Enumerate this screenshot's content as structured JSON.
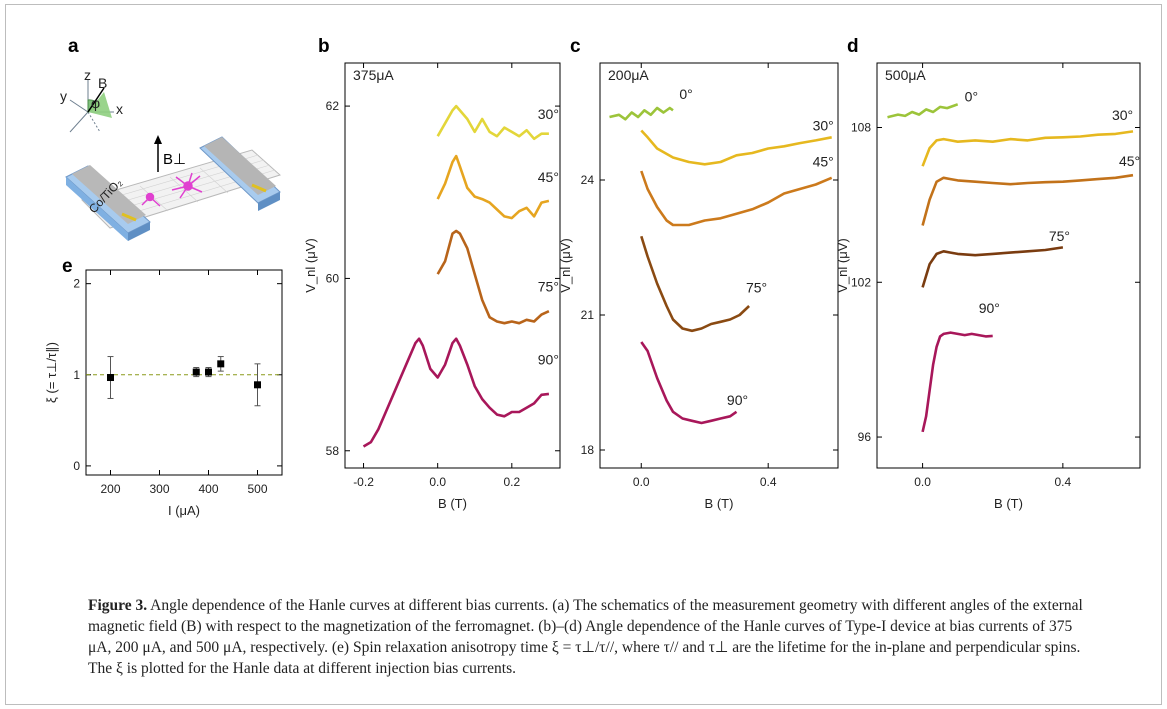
{
  "figure": {
    "panels": {
      "a": {
        "label": "a",
        "axis_x": "x",
        "axis_y": "y",
        "axis_z": "z",
        "field": "B",
        "angle": "φ",
        "bperp": "B⊥",
        "electrode": "Co/TiO₂"
      },
      "b": {
        "label": "b"
      },
      "c": {
        "label": "c"
      },
      "d": {
        "label": "d"
      },
      "e": {
        "label": "e"
      }
    }
  },
  "chart_data": [
    {
      "panel": "b",
      "type": "line",
      "current_label": "375μA",
      "xlabel": "B (T)",
      "ylabel": "V_nl (μV)",
      "xlim": [
        -0.25,
        0.33
      ],
      "ylim": [
        57.8,
        62.5
      ],
      "xticks": [
        -0.2,
        0.0,
        0.2
      ],
      "xtick_labels": [
        "-0.2",
        "0.0",
        "0.2"
      ],
      "yticks": [
        58,
        60,
        62
      ],
      "ytick_labels": [
        "58",
        "60",
        "62"
      ],
      "series": [
        {
          "name": "30°",
          "color": "#e3d63a",
          "label_at": [
            0.27,
            61.85
          ],
          "x": [
            0.0,
            0.02,
            0.04,
            0.05,
            0.06,
            0.08,
            0.1,
            0.12,
            0.14,
            0.16,
            0.18,
            0.2,
            0.22,
            0.24,
            0.26,
            0.28,
            0.3
          ],
          "y": [
            61.65,
            61.8,
            61.95,
            62.0,
            61.95,
            61.85,
            61.7,
            61.85,
            61.7,
            61.65,
            61.75,
            61.7,
            61.65,
            61.72,
            61.62,
            61.68,
            61.68
          ]
        },
        {
          "name": "45°",
          "color": "#e6a520",
          "label_at": [
            0.27,
            61.12
          ],
          "x": [
            0.0,
            0.02,
            0.04,
            0.05,
            0.06,
            0.08,
            0.1,
            0.12,
            0.14,
            0.16,
            0.18,
            0.2,
            0.22,
            0.24,
            0.26,
            0.28,
            0.3
          ],
          "y": [
            60.92,
            61.1,
            61.35,
            61.42,
            61.3,
            61.05,
            60.95,
            60.92,
            60.88,
            60.8,
            60.72,
            60.7,
            60.78,
            60.82,
            60.72,
            60.88,
            60.9
          ]
        },
        {
          "name": "75°",
          "color": "#b8641a",
          "label_at": [
            0.27,
            59.85
          ],
          "x": [
            0.0,
            0.02,
            0.04,
            0.05,
            0.06,
            0.08,
            0.1,
            0.12,
            0.14,
            0.16,
            0.18,
            0.2,
            0.22,
            0.24,
            0.26,
            0.28,
            0.3
          ],
          "y": [
            60.05,
            60.2,
            60.52,
            60.55,
            60.52,
            60.35,
            60.05,
            59.75,
            59.55,
            59.5,
            59.48,
            59.5,
            59.48,
            59.52,
            59.5,
            59.58,
            59.62
          ]
        },
        {
          "name": "90°",
          "color": "#a8175a",
          "label_at": [
            0.27,
            59.0
          ],
          "x": [
            -0.2,
            -0.18,
            -0.16,
            -0.14,
            -0.12,
            -0.1,
            -0.08,
            -0.06,
            -0.05,
            -0.04,
            -0.02,
            0.0,
            0.02,
            0.04,
            0.05,
            0.06,
            0.08,
            0.1,
            0.12,
            0.14,
            0.16,
            0.18,
            0.2,
            0.22,
            0.24,
            0.26,
            0.28,
            0.3
          ],
          "y": [
            58.05,
            58.1,
            58.25,
            58.45,
            58.65,
            58.85,
            59.05,
            59.25,
            59.3,
            59.22,
            58.95,
            58.85,
            59.0,
            59.25,
            59.3,
            59.22,
            59.0,
            58.75,
            58.6,
            58.5,
            58.42,
            58.4,
            58.45,
            58.45,
            58.5,
            58.55,
            58.65,
            58.66
          ]
        }
      ]
    },
    {
      "panel": "c",
      "type": "line",
      "current_label": "200μA",
      "xlabel": "B (T)",
      "ylabel": "V_nl (μV)",
      "xlim": [
        -0.13,
        0.62
      ],
      "ylim": [
        17.6,
        26.6
      ],
      "xticks": [
        0.0,
        0.4
      ],
      "xtick_labels": [
        "0.0",
        "0.4"
      ],
      "yticks": [
        18,
        21,
        24
      ],
      "ytick_labels": [
        "18",
        "21",
        "24"
      ],
      "series": [
        {
          "name": "0°",
          "color": "#9cc43a",
          "label_at": [
            0.12,
            25.8
          ],
          "x": [
            -0.1,
            -0.07,
            -0.05,
            -0.03,
            -0.01,
            0.01,
            0.03,
            0.05,
            0.07,
            0.09,
            0.1
          ],
          "y": [
            25.4,
            25.45,
            25.35,
            25.5,
            25.4,
            25.55,
            25.45,
            25.6,
            25.5,
            25.6,
            25.55
          ]
        },
        {
          "name": "30°",
          "color": "#e6b81f",
          "label_at": [
            0.54,
            25.1
          ],
          "x": [
            0.0,
            0.02,
            0.05,
            0.1,
            0.15,
            0.2,
            0.25,
            0.3,
            0.35,
            0.4,
            0.45,
            0.5,
            0.55,
            0.6
          ],
          "y": [
            25.1,
            24.95,
            24.7,
            24.5,
            24.4,
            24.35,
            24.4,
            24.55,
            24.6,
            24.7,
            24.75,
            24.82,
            24.88,
            24.95
          ]
        },
        {
          "name": "45°",
          "color": "#cc7a1c",
          "label_at": [
            0.54,
            24.3
          ],
          "x": [
            0.0,
            0.02,
            0.05,
            0.08,
            0.1,
            0.15,
            0.2,
            0.25,
            0.3,
            0.35,
            0.4,
            0.45,
            0.5,
            0.55,
            0.6
          ],
          "y": [
            24.2,
            23.8,
            23.4,
            23.1,
            23.0,
            23.0,
            23.1,
            23.15,
            23.25,
            23.35,
            23.5,
            23.7,
            23.8,
            23.9,
            24.05
          ]
        },
        {
          "name": "75°",
          "color": "#8a4a12",
          "label_at": [
            0.33,
            21.5
          ],
          "x": [
            0.0,
            0.02,
            0.05,
            0.08,
            0.1,
            0.13,
            0.16,
            0.19,
            0.22,
            0.25,
            0.28,
            0.31,
            0.34
          ],
          "y": [
            22.75,
            22.3,
            21.7,
            21.2,
            20.9,
            20.7,
            20.65,
            20.7,
            20.8,
            20.85,
            20.9,
            21.0,
            21.2
          ]
        },
        {
          "name": "90°",
          "color": "#a8175a",
          "label_at": [
            0.27,
            19.0
          ],
          "x": [
            0.0,
            0.02,
            0.05,
            0.08,
            0.1,
            0.13,
            0.16,
            0.19,
            0.22,
            0.25,
            0.28,
            0.3
          ],
          "y": [
            20.4,
            20.2,
            19.6,
            19.1,
            18.85,
            18.7,
            18.65,
            18.6,
            18.65,
            18.7,
            18.75,
            18.85
          ]
        }
      ]
    },
    {
      "panel": "d",
      "type": "line",
      "current_label": "500μA",
      "xlabel": "B (T)",
      "ylabel": "V_nl (μV)",
      "xlim": [
        -0.13,
        0.62
      ],
      "ylim": [
        94.8,
        110.5
      ],
      "xticks": [
        0.0,
        0.4
      ],
      "xtick_labels": [
        "0.0",
        "0.4"
      ],
      "yticks": [
        96,
        102,
        108
      ],
      "ytick_labels": [
        "96",
        "102",
        "108"
      ],
      "series": [
        {
          "name": "0°",
          "color": "#9cc43a",
          "label_at": [
            0.12,
            109.0
          ],
          "x": [
            -0.1,
            -0.07,
            -0.05,
            -0.03,
            -0.01,
            0.01,
            0.03,
            0.05,
            0.07,
            0.09,
            0.1
          ],
          "y": [
            108.4,
            108.5,
            108.45,
            108.6,
            108.5,
            108.7,
            108.6,
            108.8,
            108.75,
            108.85,
            108.9
          ]
        },
        {
          "name": "30°",
          "color": "#e6b81f",
          "label_at": [
            0.54,
            108.3
          ],
          "x": [
            0.0,
            0.02,
            0.04,
            0.06,
            0.08,
            0.1,
            0.15,
            0.2,
            0.25,
            0.3,
            0.35,
            0.4,
            0.45,
            0.5,
            0.55,
            0.6
          ],
          "y": [
            106.5,
            107.2,
            107.5,
            107.55,
            107.5,
            107.45,
            107.5,
            107.45,
            107.55,
            107.5,
            107.6,
            107.62,
            107.65,
            107.72,
            107.75,
            107.85
          ]
        },
        {
          "name": "45°",
          "color": "#c2721a",
          "label_at": [
            0.56,
            106.5
          ],
          "x": [
            0.0,
            0.02,
            0.04,
            0.06,
            0.08,
            0.1,
            0.15,
            0.2,
            0.25,
            0.3,
            0.35,
            0.4,
            0.45,
            0.5,
            0.55,
            0.6
          ],
          "y": [
            104.2,
            105.2,
            105.9,
            106.05,
            106.0,
            105.95,
            105.9,
            105.85,
            105.8,
            105.85,
            105.88,
            105.9,
            105.95,
            106.0,
            106.05,
            106.15
          ]
        },
        {
          "name": "75°",
          "color": "#7a3c10",
          "label_at": [
            0.36,
            103.6
          ],
          "x": [
            0.0,
            0.02,
            0.04,
            0.06,
            0.08,
            0.1,
            0.15,
            0.2,
            0.25,
            0.3,
            0.35,
            0.4
          ],
          "y": [
            101.8,
            102.7,
            103.1,
            103.2,
            103.15,
            103.1,
            103.05,
            103.1,
            103.15,
            103.2,
            103.25,
            103.35
          ]
        },
        {
          "name": "90°",
          "color": "#a8175a",
          "label_at": [
            0.16,
            100.8
          ],
          "x": [
            0.0,
            0.01,
            0.02,
            0.03,
            0.04,
            0.05,
            0.06,
            0.08,
            0.1,
            0.12,
            0.14,
            0.16,
            0.18,
            0.2
          ],
          "y": [
            96.2,
            96.8,
            97.8,
            98.8,
            99.5,
            99.9,
            100.0,
            100.05,
            100.0,
            99.95,
            100.0,
            99.95,
            99.9,
            99.92
          ]
        }
      ]
    },
    {
      "panel": "e",
      "type": "scatter",
      "xlabel": "I (μA)",
      "ylabel": "ξ (= τ⊥/τ∥)",
      "xlim": [
        150,
        550
      ],
      "ylim": [
        -0.1,
        2.15
      ],
      "xticks": [
        200,
        300,
        400,
        500
      ],
      "xtick_labels": [
        "200",
        "300",
        "400",
        "500"
      ],
      "yticks": [
        0,
        1,
        2
      ],
      "ytick_labels": [
        "0",
        "1",
        "2"
      ],
      "reference_line_y": 1,
      "points": [
        {
          "x": 200,
          "y": 0.97,
          "err": 0.23
        },
        {
          "x": 375,
          "y": 1.03,
          "err": 0.05
        },
        {
          "x": 400,
          "y": 1.03,
          "err": 0.05
        },
        {
          "x": 425,
          "y": 1.12,
          "err": 0.08
        },
        {
          "x": 500,
          "y": 0.89,
          "err": 0.23
        }
      ]
    }
  ],
  "caption": {
    "fignum": "Figure 3.",
    "text": "Angle dependence of the Hanle curves at different bias currents. (a) The schematics of the measurement geometry with different angles of the external magnetic field (B) with respect to the magnetization of the ferromagnet. (b)–(d) Angle dependence of the Hanle curves of Type-I device at bias currents of 375 μA, 200 μA, and 500 μA, respectively. (e) Spin relaxation anisotropy time ξ = τ⊥/τ//, where τ// and τ⊥ are the lifetime for the in-plane and perpendicular spins. The ξ is plotted for the Hanle data at different injection bias currents."
  }
}
